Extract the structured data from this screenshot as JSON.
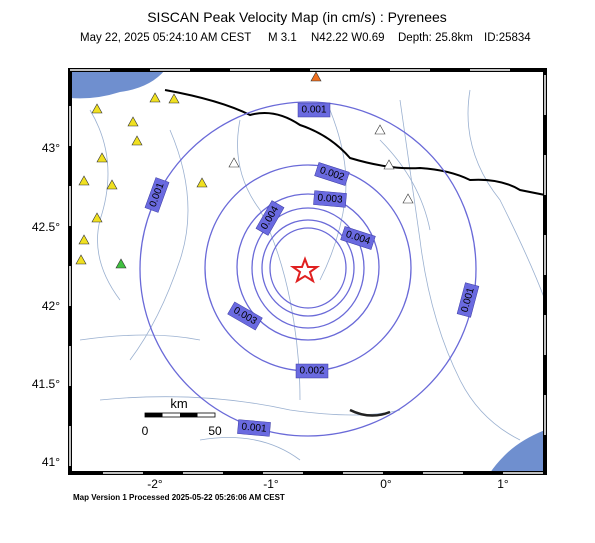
{
  "header": {
    "title": "SISCAN Peak Velocity Map (in cm/s) : Pyrenees",
    "event": {
      "time": "May 22, 2025 05:24:10 AM CEST",
      "magnitude": "M 3.1",
      "location": "N42.22 W0.69",
      "depth": "Depth: 25.8km",
      "id": "ID:25834"
    }
  },
  "map": {
    "lat_labels": [
      "43°",
      "42.5°",
      "42°",
      "41.5°",
      "41°"
    ],
    "lon_labels": [
      "-2°",
      "-1°",
      "0°",
      "1°"
    ],
    "contour_labels": [
      "0.001",
      "0.001",
      "0.001",
      "0.001",
      "0.002",
      "0.002",
      "0.003",
      "0.003",
      "0.004",
      "0.004"
    ],
    "scale_bar": {
      "unit": "km",
      "start": "0",
      "end": "50"
    }
  },
  "footer": "Map Version 1 Processed 2025-05-22 05:26:06 AM CEST"
}
